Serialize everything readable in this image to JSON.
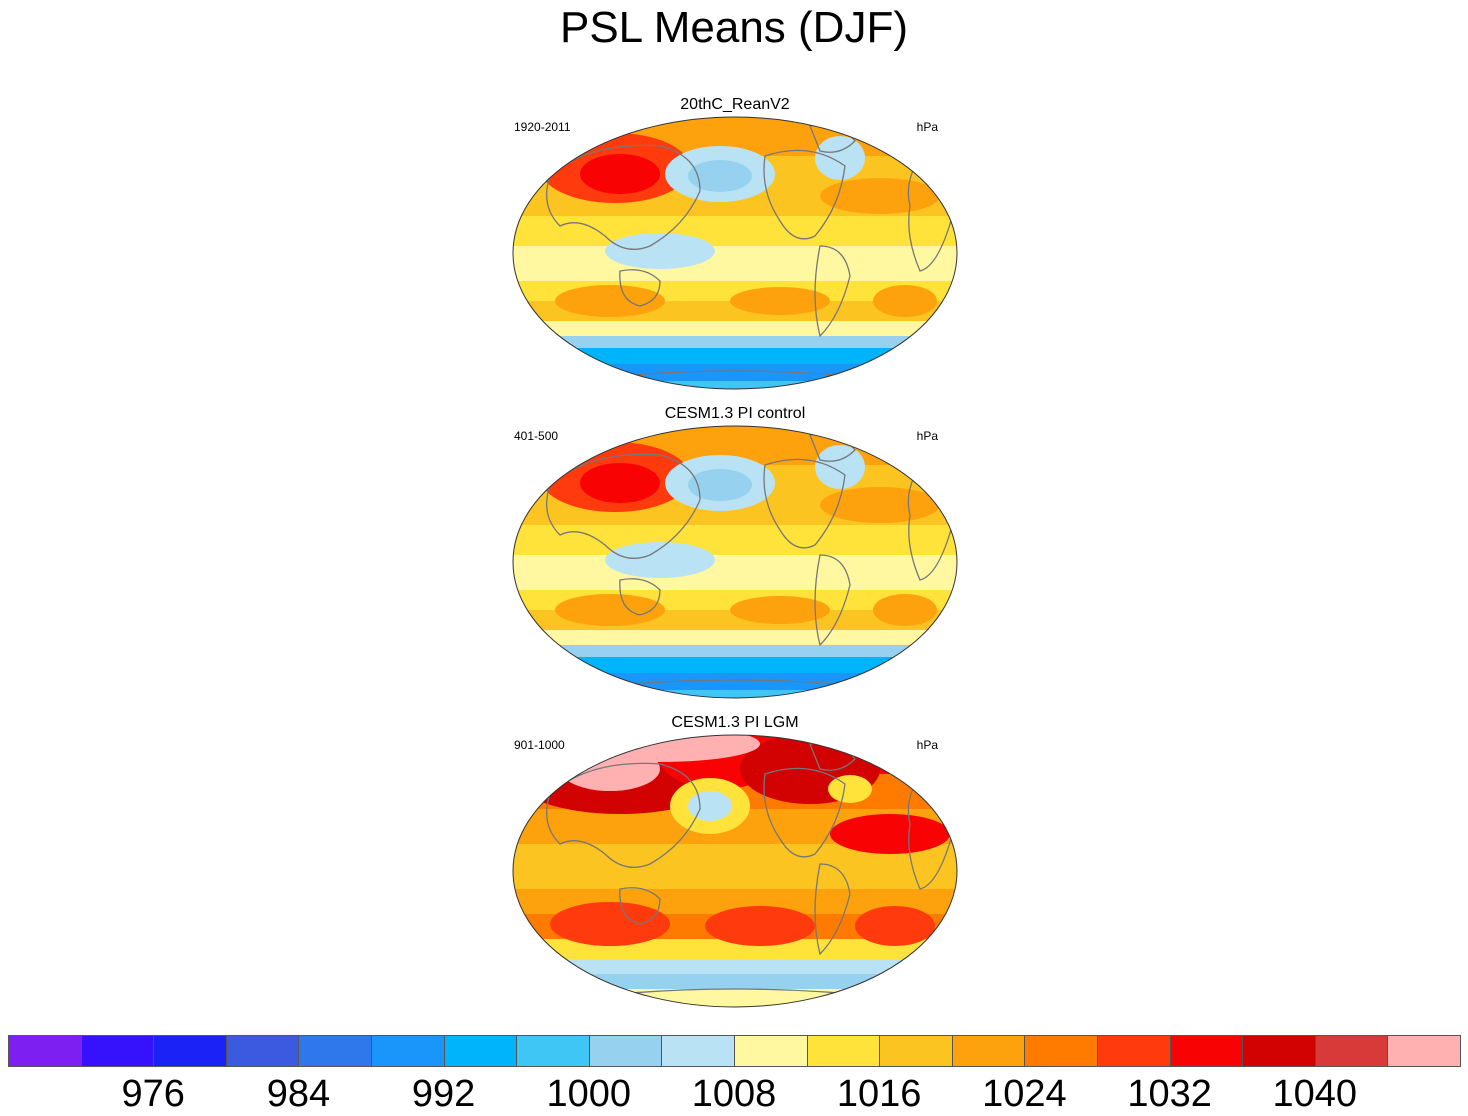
{
  "title": "PSL Means (DJF)",
  "panels": [
    {
      "title": "20thC_ReanV2",
      "period": "1920-2011",
      "units": "hPa",
      "variant": "reanalysis"
    },
    {
      "title": "CESM1.3 PI control",
      "period": "401-500",
      "units": "hPa",
      "variant": "control"
    },
    {
      "title": "CESM1.3 PI LGM",
      "period": "901-1000",
      "units": "hPa",
      "variant": "lgm"
    }
  ],
  "colorbar": {
    "colors": [
      "#7e1ff2",
      "#3512fb",
      "#1a22f5",
      "#3b5ae0",
      "#2f78eb",
      "#1a96fb",
      "#00b4fc",
      "#40c6f5",
      "#96d2ef",
      "#bae2f5",
      "#fff8a0",
      "#ffe23a",
      "#fcc420",
      "#fda20c",
      "#ff7b00",
      "#ff3a0c",
      "#f80203",
      "#d20102",
      "#d83a3a",
      "#ffb1b1"
    ],
    "labels": [
      "976",
      "984",
      "992",
      "1000",
      "1008",
      "1016",
      "1024",
      "1032",
      "1040"
    ],
    "label_boundaries": [
      2,
      4,
      6,
      8,
      10,
      12,
      14,
      16,
      18
    ]
  },
  "colors": {
    "land_outline": "#777777",
    "frame": "#333333"
  }
}
